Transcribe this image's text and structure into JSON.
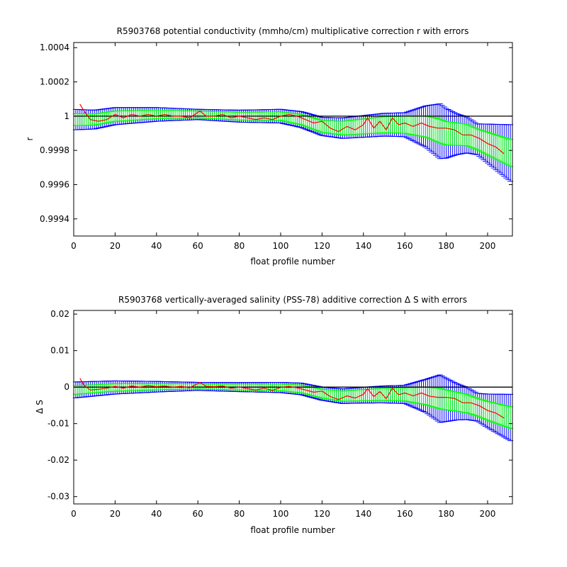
{
  "figure": {
    "background": "#ffffff",
    "colors": {
      "outer_error_bars": "#0000ff",
      "inner_error_bars": "#00ff00",
      "correction_line": "#ff0000",
      "reference_line": "#000000"
    }
  },
  "chart_data": [
    {
      "type": "line",
      "title": "R5903768 potential conductivity (mmho/cm) multiplicative correction r with errors",
      "xlabel": "float profile number",
      "ylabel": "r",
      "xlim": [
        0,
        212
      ],
      "ylim": [
        0.9993,
        1.00043
      ],
      "xticks": [
        0,
        20,
        40,
        60,
        80,
        100,
        120,
        140,
        160,
        180,
        200
      ],
      "yticks": [
        0.9994,
        0.9996,
        0.9998,
        1,
        1.0002,
        1.0004
      ],
      "ytick_labels": [
        "0.9994",
        "0.9996",
        "0.9998",
        "1",
        "1.0002",
        "1.0004"
      ],
      "reference": 1,
      "grid": false,
      "center_knots": [
        [
          0,
          0.99998
        ],
        [
          10,
          0.99998
        ],
        [
          20,
          1.0
        ],
        [
          40,
          1.00001
        ],
        [
          60,
          1.00001
        ],
        [
          80,
          1.0
        ],
        [
          100,
          1.0
        ],
        [
          110,
          0.99998
        ],
        [
          120,
          0.99994
        ],
        [
          130,
          0.99993
        ],
        [
          140,
          0.99994
        ],
        [
          150,
          0.99995
        ],
        [
          160,
          0.99995
        ],
        [
          170,
          0.99994
        ],
        [
          180,
          0.9999
        ],
        [
          190,
          0.99989
        ],
        [
          200,
          0.99984
        ],
        [
          212,
          0.99978
        ]
      ],
      "outer_halfwidth_knots": [
        [
          0,
          6e-05
        ],
        [
          20,
          5e-05
        ],
        [
          60,
          3e-05
        ],
        [
          100,
          4e-05
        ],
        [
          130,
          6e-05
        ],
        [
          160,
          7e-05
        ],
        [
          170,
          0.00012
        ],
        [
          177,
          0.00016
        ],
        [
          185,
          0.00012
        ],
        [
          195,
          9e-05
        ],
        [
          212,
          0.00017
        ]
      ],
      "inner_halfwidth_knots": [
        [
          0,
          3.5e-05
        ],
        [
          20,
          3e-05
        ],
        [
          60,
          2e-05
        ],
        [
          100,
          2.5e-05
        ],
        [
          130,
          4e-05
        ],
        [
          160,
          5e-05
        ],
        [
          177,
          7e-05
        ],
        [
          195,
          6e-05
        ],
        [
          212,
          8e-05
        ]
      ],
      "series": [
        {
          "x": [
            3,
            5,
            8,
            12,
            16,
            20,
            24,
            28,
            32,
            36,
            40,
            44,
            48,
            52,
            56,
            61,
            64,
            68,
            72,
            76,
            80,
            84,
            88,
            92,
            96,
            100,
            104,
            108,
            112,
            116,
            120,
            124,
            128,
            132,
            136,
            140,
            142,
            145,
            148,
            151,
            154,
            157,
            160,
            164,
            168,
            172,
            176,
            180,
            184,
            188,
            192,
            196,
            200,
            204,
            208
          ],
          "y": [
            1.00007,
            1.00003,
            0.99998,
            0.99997,
            0.99998,
            1.00001,
            0.99999,
            1.00001,
            1.0,
            1.00001,
            1.0,
            1.00001,
            1.0,
            1.0,
            0.99999,
            1.00003,
            1.0,
            1.0,
            1.00001,
            0.99999,
            1.0,
            0.99999,
            0.99998,
            0.99999,
            0.99998,
            1.0,
            1.00001,
            1.0,
            0.99998,
            0.99996,
            0.99997,
            0.99993,
            0.99991,
            0.99994,
            0.99992,
            0.99995,
            0.99999,
            0.99993,
            0.99997,
            0.99992,
            0.99999,
            0.99995,
            0.99996,
            0.99994,
            0.99996,
            0.99994,
            0.99993,
            0.99993,
            0.99992,
            0.99989,
            0.99989,
            0.99987,
            0.99984,
            0.99982,
            0.99978
          ]
        }
      ]
    },
    {
      "type": "line",
      "title": "R5903768 vertically-averaged salinity (PSS-78) additive correction Δ S with errors",
      "xlabel": "float profile number",
      "ylabel": "Δ S",
      "xlim": [
        0,
        212
      ],
      "ylim": [
        -0.032,
        0.021
      ],
      "xticks": [
        0,
        20,
        40,
        60,
        80,
        100,
        120,
        140,
        160,
        180,
        200
      ],
      "yticks": [
        -0.03,
        -0.02,
        -0.01,
        0,
        0.01,
        0.02
      ],
      "ytick_labels": [
        "-0.03",
        "-0.02",
        "-0.01",
        "0",
        "0.01",
        "0.02"
      ],
      "reference": 0,
      "grid": false,
      "center_knots": [
        [
          0,
          -0.0008
        ],
        [
          20,
          -0.0001
        ],
        [
          40,
          0.0001
        ],
        [
          60,
          0.0002
        ],
        [
          80,
          0.0
        ],
        [
          100,
          -0.0001
        ],
        [
          110,
          -0.0005
        ],
        [
          120,
          -0.0018
        ],
        [
          130,
          -0.0025
        ],
        [
          140,
          -0.0022
        ],
        [
          150,
          -0.002
        ],
        [
          160,
          -0.002
        ],
        [
          170,
          -0.0024
        ],
        [
          180,
          -0.0035
        ],
        [
          190,
          -0.0045
        ],
        [
          200,
          -0.0065
        ],
        [
          212,
          -0.0085
        ]
      ],
      "outer_halfwidth_knots": [
        [
          0,
          0.0022
        ],
        [
          20,
          0.0018
        ],
        [
          60,
          0.0011
        ],
        [
          100,
          0.0014
        ],
        [
          130,
          0.002
        ],
        [
          160,
          0.0025
        ],
        [
          170,
          0.0045
        ],
        [
          177,
          0.0065
        ],
        [
          185,
          0.005
        ],
        [
          195,
          0.0038
        ],
        [
          212,
          0.0065
        ]
      ],
      "inner_halfwidth_knots": [
        [
          0,
          0.0012
        ],
        [
          20,
          0.001
        ],
        [
          60,
          0.0007
        ],
        [
          100,
          0.0009
        ],
        [
          130,
          0.0014
        ],
        [
          160,
          0.0018
        ],
        [
          177,
          0.0028
        ],
        [
          195,
          0.0024
        ],
        [
          212,
          0.003
        ]
      ],
      "series": [
        {
          "x": [
            3,
            5,
            8,
            12,
            16,
            20,
            24,
            28,
            32,
            36,
            40,
            44,
            48,
            52,
            56,
            61,
            64,
            68,
            72,
            76,
            80,
            84,
            88,
            92,
            96,
            100,
            104,
            108,
            112,
            116,
            120,
            124,
            128,
            132,
            136,
            140,
            142,
            145,
            148,
            151,
            154,
            157,
            160,
            164,
            168,
            172,
            176,
            180,
            184,
            188,
            192,
            196,
            200,
            204,
            208
          ],
          "y": [
            0.0024,
            0.0005,
            -0.0008,
            -0.0006,
            -0.0003,
            0.0002,
            -0.0003,
            0.0003,
            0.0,
            0.0004,
            0.0001,
            0.0003,
            0.0,
            0.0002,
            -0.0002,
            0.0013,
            0.0002,
            0.0001,
            0.0003,
            -0.0003,
            0.0,
            -0.0004,
            -0.0008,
            -0.0003,
            -0.0009,
            -0.0001,
            0.0002,
            -0.0002,
            -0.0008,
            -0.0014,
            -0.0011,
            -0.0026,
            -0.0034,
            -0.0024,
            -0.003,
            -0.002,
            -0.0004,
            -0.0026,
            -0.0012,
            -0.0032,
            -0.0003,
            -0.0021,
            -0.0016,
            -0.0024,
            -0.0016,
            -0.0025,
            -0.0028,
            -0.0028,
            -0.0031,
            -0.0043,
            -0.0043,
            -0.0051,
            -0.0064,
            -0.0071,
            -0.0085
          ]
        }
      ]
    }
  ]
}
